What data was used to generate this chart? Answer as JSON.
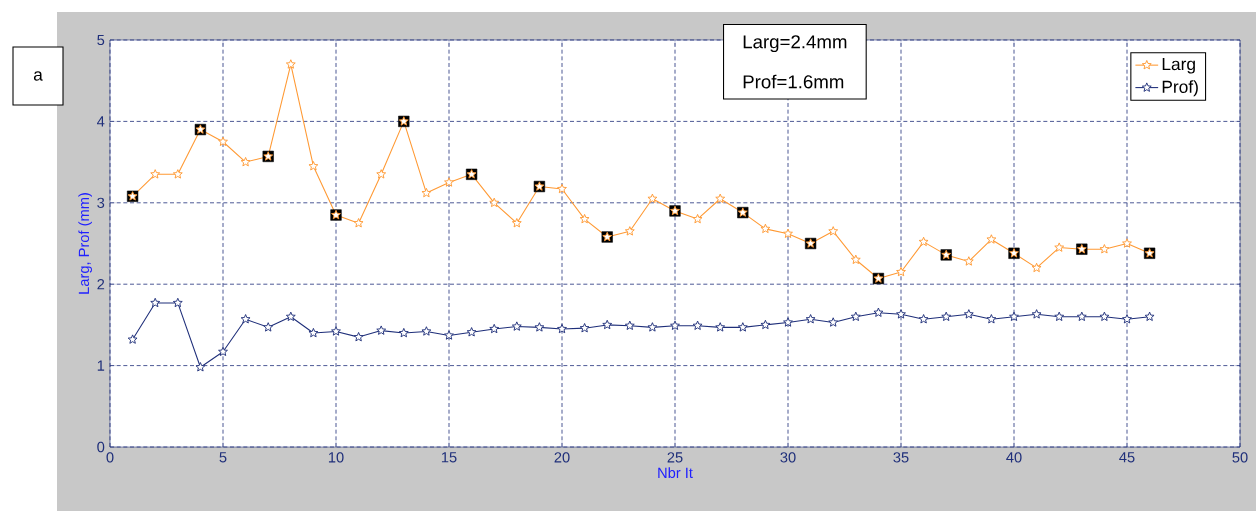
{
  "chart_data": {
    "type": "line",
    "xlabel": "Nbr It",
    "ylabel": "Larg, Prof (mm)",
    "annotations": [
      "a",
      "Larg=2.4mm",
      "Prof=1.6mm"
    ],
    "x": [
      1,
      2,
      3,
      4,
      5,
      6,
      7,
      8,
      9,
      10,
      11,
      12,
      13,
      14,
      15,
      16,
      17,
      18,
      19,
      20,
      21,
      22,
      23,
      24,
      25,
      26,
      27,
      28,
      29,
      30,
      31,
      32,
      33,
      34,
      35,
      36,
      37,
      38,
      39,
      40,
      41,
      42,
      43,
      44,
      45,
      46
    ],
    "series": [
      {
        "name": "Larg",
        "color": "#ff9933",
        "marker": "star",
        "values": [
          3.08,
          3.35,
          3.35,
          3.9,
          3.75,
          3.5,
          3.57,
          4.7,
          3.45,
          2.85,
          2.75,
          3.35,
          4.0,
          3.12,
          3.25,
          3.35,
          3.0,
          2.75,
          3.2,
          3.17,
          2.8,
          2.58,
          2.65,
          3.05,
          2.9,
          2.8,
          3.05,
          2.88,
          2.68,
          2.62,
          2.5,
          2.65,
          2.3,
          2.07,
          2.15,
          2.52,
          2.36,
          2.28,
          2.55,
          2.38,
          2.2,
          2.45,
          2.43,
          2.43,
          2.5,
          2.38
        ]
      },
      {
        "name": "Prof)",
        "color": "#1f2f7a",
        "marker": "star",
        "values": [
          1.32,
          1.77,
          1.77,
          0.98,
          1.17,
          1.57,
          1.47,
          1.6,
          1.4,
          1.42,
          1.35,
          1.43,
          1.4,
          1.42,
          1.37,
          1.41,
          1.45,
          1.48,
          1.47,
          1.45,
          1.46,
          1.5,
          1.49,
          1.47,
          1.49,
          1.49,
          1.47,
          1.47,
          1.5,
          1.53,
          1.57,
          1.53,
          1.6,
          1.65,
          1.63,
          1.57,
          1.6,
          1.63,
          1.57,
          1.6,
          1.63,
          1.6,
          1.6,
          1.6,
          1.57,
          1.6
        ]
      },
      {
        "type": "scatter",
        "color": "#000000",
        "marker": "square",
        "x": [
          1,
          4,
          7,
          10,
          13,
          16,
          19,
          22,
          25,
          28,
          31,
          34,
          37,
          40,
          43,
          46
        ],
        "values": [
          3.08,
          3.9,
          3.57,
          2.85,
          4.0,
          3.35,
          3.2,
          2.58,
          2.9,
          2.88,
          2.5,
          2.07,
          2.36,
          2.38,
          2.43,
          2.38
        ]
      }
    ],
    "xlim": [
      0,
      50
    ],
    "xticks": [
      0,
      5,
      10,
      15,
      20,
      25,
      30,
      35,
      40,
      45,
      50
    ],
    "ylim": [
      0,
      5
    ],
    "yticks": [
      0,
      1,
      2,
      3,
      4,
      5
    ],
    "grid": true,
    "legend": "top right",
    "line_style": "solid"
  }
}
